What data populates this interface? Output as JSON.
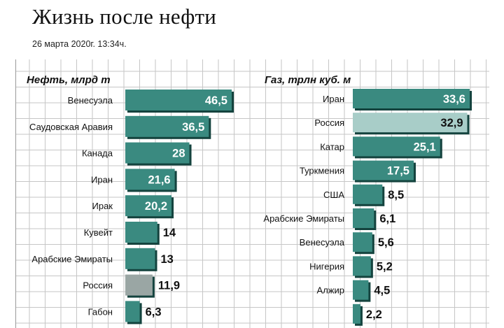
{
  "page": {
    "title": "Жизнь после нефти",
    "date": "26 марта 2020г. 13:34ч."
  },
  "colors": {
    "bar": "#3a8a80",
    "bar_shadow": "#14433e",
    "highlight_left": "#9aa6a4",
    "highlight_right": "#a8cdc8",
    "text": "#111111"
  },
  "chart_data": [
    {
      "type": "bar",
      "orientation": "horizontal",
      "ylabel": "Нефть, млрд т",
      "categories": [
        "Венесуэла",
        "Саудовская Аравия",
        "Канада",
        "Иран",
        "Ирак",
        "Кувейт",
        "Арабские Эмираты",
        "Россия",
        "Габон"
      ],
      "values": [
        46.5,
        36.5,
        28,
        21.6,
        20.2,
        14,
        13,
        11.9,
        6.3
      ],
      "labels": [
        "46,5",
        "36,5",
        "28",
        "21,6",
        "20,2",
        "14",
        "13",
        "11,9",
        "6,3"
      ],
      "highlight": "Россия"
    },
    {
      "type": "bar",
      "orientation": "horizontal",
      "ylabel": "Газ, трлн куб. м",
      "categories": [
        "Иран",
        "Россия",
        "Катар",
        "Туркмения",
        "США",
        "Арабские Эмираты",
        "Венесуэла",
        "Нигерия",
        "Алжир",
        ""
      ],
      "values": [
        33.6,
        32.9,
        25.1,
        17.5,
        8.5,
        6.1,
        5.6,
        5.2,
        4.5,
        2.2
      ],
      "labels": [
        "33,6",
        "32,9",
        "25,1",
        "17,5",
        "8,5",
        "6,1",
        "5,6",
        "5,2",
        "4,5",
        "2,2"
      ],
      "highlight": "Россия"
    }
  ]
}
